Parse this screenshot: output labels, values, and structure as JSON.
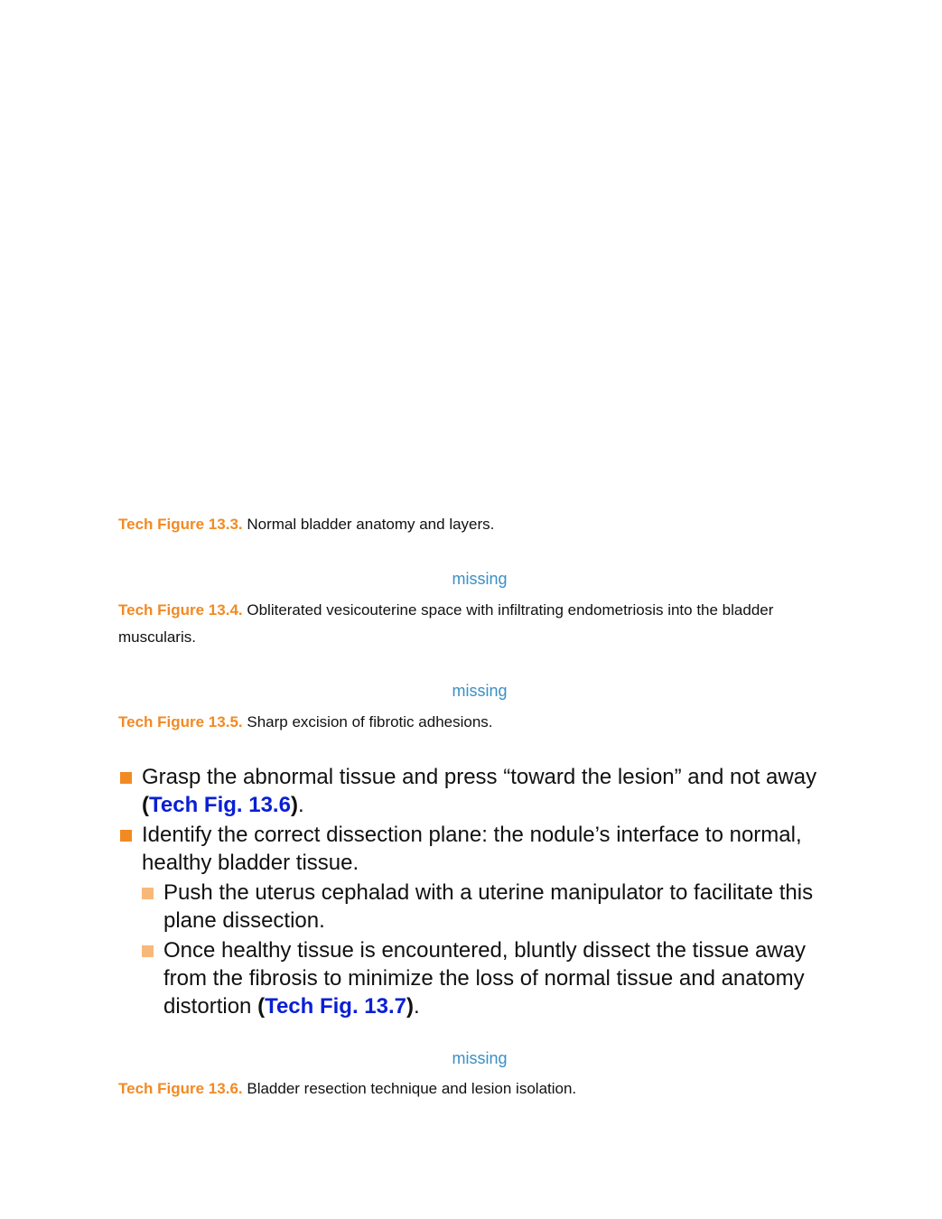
{
  "captions": [
    {
      "label": "Tech Figure 13.3.",
      "text": "Normal bladder anatomy and layers."
    },
    {
      "placeholder": "missing",
      "label": "Tech Figure 13.4.",
      "text": "Obliterated vesicouterine space with infiltrating endometriosis into the bladder muscularis."
    },
    {
      "placeholder": "missing",
      "label": "Tech Figure 13.5.",
      "text": "Sharp excision of fibrotic adhesions."
    }
  ],
  "bullets": [
    {
      "text": "Grasp the abnormal tissue and press “toward the lesion” and not away ",
      "open": "(",
      "link": "Tech Fig. 13.6",
      "close": ")",
      "after": "."
    },
    {
      "text": "Identify the correct dissection plane: the nodule’s interface to normal, healthy bladder tissue.",
      "sub": [
        {
          "text": "Push the uterus cephalad with a uterine manipulator to facilitate this plane dissection."
        },
        {
          "text": "Once healthy tissue is encountered, bluntly dissect the tissue away from the fibrosis to minimize the loss of normal tissue and anatomy distortion ",
          "open": "(",
          "link": "Tech Fig. 13.7",
          "close": ")",
          "after": "."
        }
      ]
    }
  ],
  "final_caption": {
    "placeholder": "missing",
    "label": "Tech Figure 13.6.",
    "text": "Bladder resection technique and lesion isolation."
  }
}
